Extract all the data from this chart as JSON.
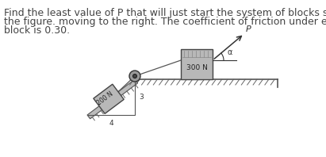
{
  "text_lines": [
    "Find the least value of P that will just start the system of blocks shown in",
    "the figure. moving to the right. The coefficient of friction under each",
    "block is 0.30."
  ],
  "text_fontsize": 9.0,
  "text_color": "#444444",
  "bg_color": "#ffffff",
  "fig_width": 4.11,
  "fig_height": 1.98,
  "dpi": 100,
  "incline_slope_label_3": "3",
  "incline_slope_label_4": "4",
  "block_200N_label": "200 N",
  "block_300N_label": "300 N",
  "force_label": "P",
  "angle_label": "α",
  "surface_color": "#aaaaaa",
  "block_face_color": "#b8b8b8",
  "block_edge_color": "#444444",
  "ground_color": "#555555",
  "rope_color": "#555555",
  "hatch_color": "#666666"
}
